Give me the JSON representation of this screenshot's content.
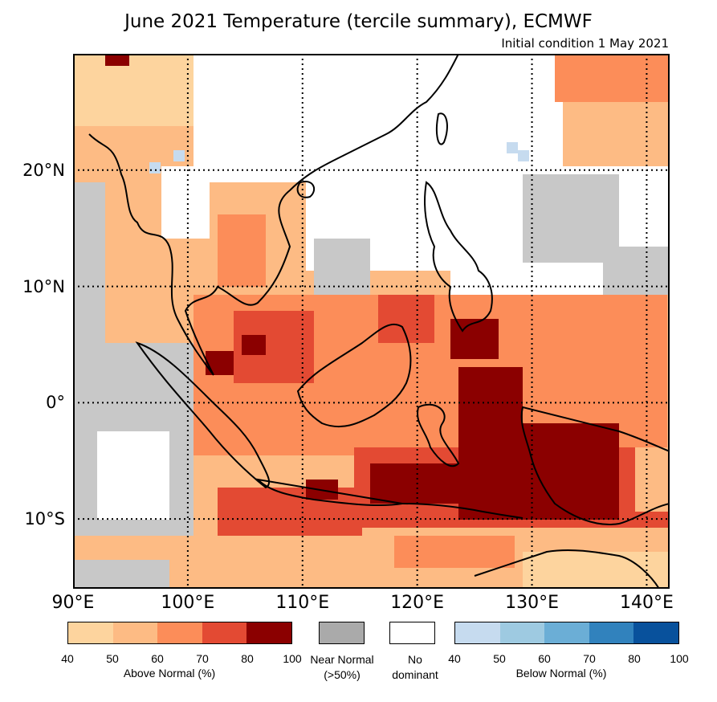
{
  "title": "June 2021 Temperature (tercile summary), ECMWF",
  "subtitle": "Initial condition 1 May 2021",
  "map": {
    "lon_range": [
      90,
      142
    ],
    "lat_range": [
      -16,
      30
    ],
    "lat_labels": [
      {
        "lat": 20,
        "label": "20°N"
      },
      {
        "lat": 10,
        "label": "10°N"
      },
      {
        "lat": 0,
        "label": "0°"
      },
      {
        "lat": -10,
        "label": "10°S"
      }
    ],
    "lon_labels": [
      {
        "lon": 90,
        "label": "90°E"
      },
      {
        "lon": 100,
        "label": "100°E"
      },
      {
        "lon": 110,
        "label": "110°E"
      },
      {
        "lon": 120,
        "label": "120°E"
      },
      {
        "lon": 130,
        "label": "130°E"
      },
      {
        "lon": 140,
        "label": "140°E"
      }
    ],
    "gridlines": "dotted"
  },
  "legend": {
    "above": {
      "caption": "Above Normal (%)",
      "ticks": [
        "40",
        "50",
        "60",
        "70",
        "80",
        "100"
      ],
      "colors": [
        "#fdd49e",
        "#fdbb84",
        "#fc8d59",
        "#e34a33",
        "#8b0000"
      ]
    },
    "near": {
      "line1": "Near Normal",
      "line2": "(>50%)",
      "color": "#aaaaaa"
    },
    "none": {
      "line1": "No",
      "line2": "dominant",
      "color": "#ffffff"
    },
    "below": {
      "caption": "Below Normal (%)",
      "ticks": [
        "40",
        "50",
        "60",
        "70",
        "80",
        "100"
      ],
      "colors": [
        "#c6dbef",
        "#9ecae1",
        "#6baed6",
        "#3182bd",
        "#08519c"
      ]
    }
  }
}
